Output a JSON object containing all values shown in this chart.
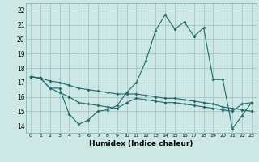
{
  "xlabel": "Humidex (Indice chaleur)",
  "xlim": [
    -0.5,
    23.5
  ],
  "ylim": [
    13.5,
    22.5
  ],
  "yticks": [
    14,
    15,
    16,
    17,
    18,
    19,
    20,
    21,
    22
  ],
  "xticks": [
    0,
    1,
    2,
    3,
    4,
    5,
    6,
    7,
    8,
    9,
    10,
    11,
    12,
    13,
    14,
    15,
    16,
    17,
    18,
    19,
    20,
    21,
    22,
    23
  ],
  "bg_color": "#cde8e4",
  "grid_color": "#9bbfbb",
  "line_color": "#1a6b6b",
  "line1_x": [
    0,
    1,
    2,
    3,
    4,
    5,
    6,
    7,
    8,
    9,
    10,
    11,
    12,
    13,
    14,
    15,
    16,
    17,
    18,
    19,
    20,
    21,
    22,
    23
  ],
  "line1_y": [
    17.4,
    17.3,
    16.6,
    16.6,
    14.8,
    14.1,
    14.4,
    15.0,
    15.1,
    15.4,
    16.3,
    17.0,
    18.5,
    20.6,
    21.7,
    20.7,
    21.2,
    20.2,
    20.8,
    17.2,
    17.2,
    13.8,
    14.7,
    15.6
  ],
  "line2_x": [
    0,
    1,
    2,
    3,
    4,
    5,
    6,
    7,
    8,
    9,
    10,
    11,
    12,
    13,
    14,
    15,
    16,
    17,
    18,
    19,
    20,
    21,
    22,
    23
  ],
  "line2_y": [
    17.4,
    17.3,
    16.6,
    16.3,
    16.0,
    15.6,
    15.5,
    15.4,
    15.3,
    15.2,
    15.6,
    15.9,
    15.8,
    15.7,
    15.6,
    15.6,
    15.5,
    15.4,
    15.3,
    15.2,
    15.1,
    15.0,
    15.5,
    15.6
  ],
  "line3_x": [
    0,
    1,
    2,
    3,
    4,
    5,
    6,
    7,
    8,
    9,
    10,
    11,
    12,
    13,
    14,
    15,
    16,
    17,
    18,
    19,
    20,
    21,
    22,
    23
  ],
  "line3_y": [
    17.4,
    17.3,
    17.1,
    17.0,
    16.8,
    16.6,
    16.5,
    16.4,
    16.3,
    16.2,
    16.2,
    16.2,
    16.1,
    16.0,
    15.9,
    15.9,
    15.8,
    15.7,
    15.6,
    15.5,
    15.3,
    15.2,
    15.1,
    15.0
  ]
}
